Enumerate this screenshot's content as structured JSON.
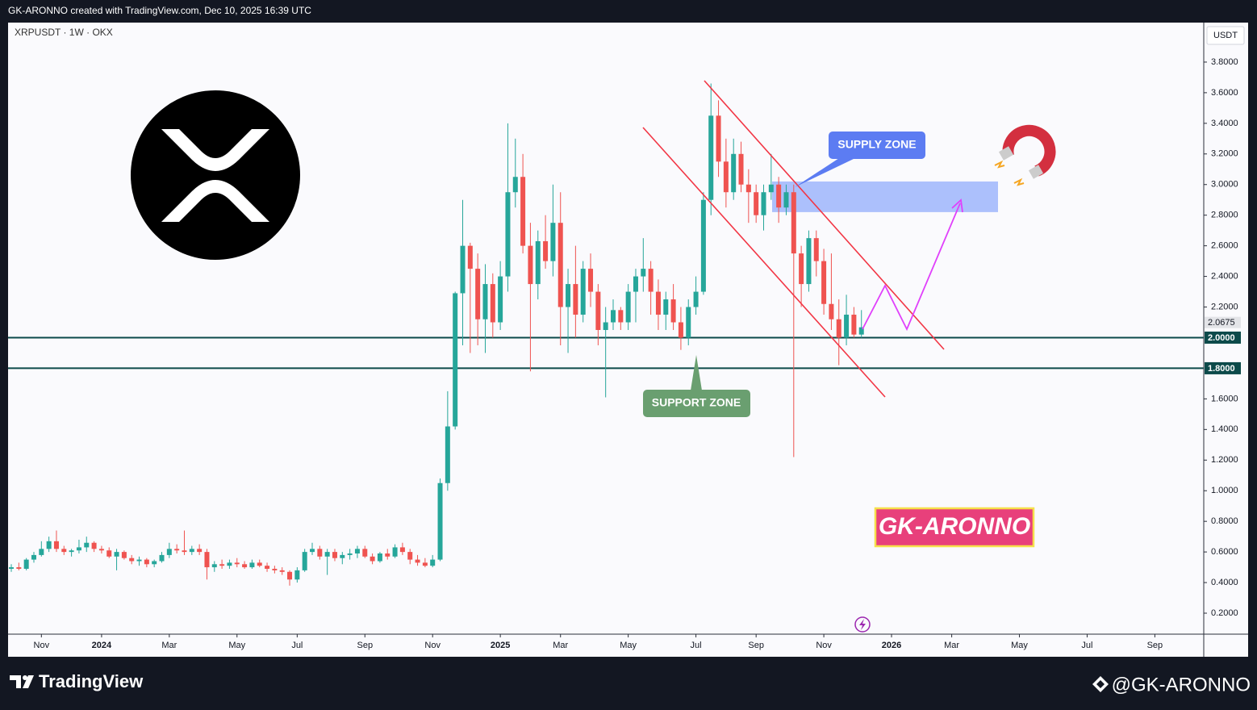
{
  "page_header": "GK-ARONNO created with TradingView.com, Dec 10, 2025 16:39 UTC",
  "footer": {
    "brand": "TradingView",
    "author": "@GK-ARONNO"
  },
  "chart_data": {
    "type": "candlestick",
    "title": "XRPUSDT · 1W · OKX",
    "currency": "USDT",
    "up_color": "#26a69a",
    "down_color": "#ef5350",
    "open": [
      0.49,
      0.5,
      0.49,
      0.55,
      0.58,
      0.62,
      0.67,
      0.62,
      0.6,
      0.61,
      0.63,
      0.66,
      0.62,
      0.61,
      0.57,
      0.6,
      0.56,
      0.54,
      0.55,
      0.52,
      0.54,
      0.58,
      0.62,
      0.61,
      0.6,
      0.62,
      0.6,
      0.5,
      0.52,
      0.51,
      0.53,
      0.52,
      0.5,
      0.53,
      0.51,
      0.49,
      0.48,
      0.47,
      0.42,
      0.48,
      0.6,
      0.62,
      0.57,
      0.6,
      0.56,
      0.58,
      0.59,
      0.62,
      0.57,
      0.54,
      0.59,
      0.57,
      0.63,
      0.6,
      0.55,
      0.53,
      0.51,
      0.55,
      1.05,
      1.42,
      2.29,
      2.6,
      2.45,
      2.12,
      2.35,
      2.1,
      2.4,
      2.95,
      3.05,
      2.6,
      2.35,
      2.63,
      2.5,
      2.75,
      2.2,
      2.35,
      2.15,
      2.45,
      2.3,
      2.05,
      2.1,
      2.18,
      2.1,
      2.3,
      2.4,
      2.45,
      2.3,
      2.15,
      2.25,
      2.1,
      2.0,
      2.2,
      2.3,
      2.9,
      3.45,
      3.15,
      2.95,
      3.2,
      3.0,
      2.95,
      2.8,
      2.95,
      3.0,
      2.85,
      2.95,
      2.55,
      2.35,
      2.65,
      2.5,
      2.22,
      2.12,
      2.0,
      2.15,
      2.02
    ],
    "high": [
      0.52,
      0.53,
      0.56,
      0.6,
      0.67,
      0.7,
      0.74,
      0.64,
      0.62,
      0.68,
      0.7,
      0.67,
      0.64,
      0.63,
      0.62,
      0.61,
      0.58,
      0.57,
      0.56,
      0.55,
      0.6,
      0.66,
      0.65,
      0.74,
      0.64,
      0.65,
      0.62,
      0.54,
      0.55,
      0.55,
      0.56,
      0.54,
      0.55,
      0.55,
      0.53,
      0.51,
      0.5,
      0.48,
      0.5,
      0.62,
      0.66,
      0.64,
      0.62,
      0.62,
      0.6,
      0.62,
      0.64,
      0.64,
      0.59,
      0.6,
      0.62,
      0.65,
      0.66,
      0.62,
      0.58,
      0.56,
      0.58,
      1.08,
      1.65,
      2.3,
      2.9,
      2.62,
      2.55,
      2.48,
      2.42,
      2.5,
      3.4,
      3.3,
      3.2,
      2.75,
      2.7,
      2.8,
      3.0,
      2.95,
      2.45,
      2.6,
      2.5,
      2.55,
      2.35,
      2.2,
      2.25,
      2.2,
      2.35,
      2.45,
      2.65,
      2.5,
      2.38,
      2.3,
      2.35,
      2.2,
      2.25,
      2.4,
      2.95,
      3.66,
      3.55,
      3.3,
      3.3,
      3.28,
      3.1,
      3.0,
      3.0,
      3.2,
      3.05,
      3.0,
      3.0,
      2.6,
      2.7,
      2.7,
      2.58,
      2.55,
      2.25,
      2.28,
      2.2,
      2.18
    ],
    "low": [
      0.47,
      0.48,
      0.48,
      0.53,
      0.57,
      0.6,
      0.6,
      0.58,
      0.57,
      0.59,
      0.6,
      0.6,
      0.59,
      0.56,
      0.48,
      0.55,
      0.52,
      0.51,
      0.5,
      0.5,
      0.53,
      0.56,
      0.59,
      0.58,
      0.58,
      0.58,
      0.42,
      0.47,
      0.49,
      0.49,
      0.5,
      0.49,
      0.49,
      0.5,
      0.47,
      0.46,
      0.45,
      0.38,
      0.4,
      0.47,
      0.58,
      0.55,
      0.45,
      0.54,
      0.52,
      0.55,
      0.56,
      0.56,
      0.52,
      0.53,
      0.55,
      0.56,
      0.58,
      0.52,
      0.51,
      0.5,
      0.5,
      0.54,
      1.0,
      1.4,
      1.95,
      1.9,
      1.95,
      1.9,
      2.0,
      2.05,
      2.3,
      2.85,
      2.55,
      1.78,
      2.25,
      2.45,
      2.4,
      1.95,
      1.9,
      2.0,
      2.1,
      2.2,
      1.95,
      1.61,
      2.05,
      2.05,
      2.05,
      2.1,
      2.3,
      2.15,
      2.05,
      2.05,
      2.05,
      1.92,
      1.95,
      2.15,
      2.28,
      2.8,
      3.05,
      2.85,
      2.9,
      2.95,
      2.75,
      2.75,
      2.7,
      2.9,
      2.75,
      2.8,
      1.22,
      2.2,
      2.3,
      2.4,
      2.15,
      2.05,
      1.82,
      1.95,
      2.0,
      2.0
    ],
    "close": [
      0.5,
      0.49,
      0.55,
      0.58,
      0.62,
      0.67,
      0.62,
      0.6,
      0.61,
      0.63,
      0.66,
      0.62,
      0.61,
      0.57,
      0.6,
      0.56,
      0.54,
      0.55,
      0.52,
      0.54,
      0.58,
      0.62,
      0.61,
      0.6,
      0.62,
      0.6,
      0.5,
      0.52,
      0.51,
      0.53,
      0.52,
      0.5,
      0.53,
      0.51,
      0.49,
      0.48,
      0.47,
      0.42,
      0.48,
      0.6,
      0.62,
      0.57,
      0.6,
      0.56,
      0.58,
      0.59,
      0.62,
      0.57,
      0.54,
      0.59,
      0.57,
      0.63,
      0.6,
      0.55,
      0.53,
      0.51,
      0.55,
      1.05,
      1.42,
      2.29,
      2.6,
      2.45,
      2.12,
      2.35,
      2.1,
      2.4,
      2.95,
      3.05,
      2.6,
      2.35,
      2.63,
      2.5,
      2.75,
      2.2,
      2.35,
      2.15,
      2.45,
      2.3,
      2.05,
      2.1,
      2.18,
      2.1,
      2.3,
      2.4,
      2.45,
      2.3,
      2.15,
      2.25,
      2.1,
      2.0,
      2.2,
      2.3,
      2.9,
      3.45,
      3.15,
      2.95,
      3.2,
      3.0,
      2.95,
      2.8,
      2.95,
      3.0,
      2.85,
      2.95,
      2.55,
      2.35,
      2.65,
      2.5,
      2.22,
      2.12,
      2.0,
      2.15,
      2.02,
      2.0675
    ],
    "xlim": [
      -0.43,
      158.5
    ],
    "xticks": [
      {
        "value": 4,
        "label": "Nov"
      },
      {
        "value": 12,
        "label": "2024"
      },
      {
        "value": 21,
        "label": "Mar"
      },
      {
        "value": 30,
        "label": "May"
      },
      {
        "value": 38,
        "label": "Jul"
      },
      {
        "value": 47,
        "label": "Sep"
      },
      {
        "value": 56,
        "label": "Nov"
      },
      {
        "value": 65,
        "label": "2025"
      },
      {
        "value": 73,
        "label": "Mar"
      },
      {
        "value": 82,
        "label": "May"
      },
      {
        "value": 91,
        "label": "Jul"
      },
      {
        "value": 99,
        "label": "Sep"
      },
      {
        "value": 108,
        "label": "Nov"
      },
      {
        "value": 117,
        "label": "2026"
      },
      {
        "value": 125,
        "label": "Mar"
      },
      {
        "value": 134,
        "label": "May"
      },
      {
        "value": 143,
        "label": "Jul"
      },
      {
        "value": 152,
        "label": "Sep"
      }
    ],
    "ylim": [
      0.063,
      4.058
    ],
    "yticks": [
      {
        "value": 0.2,
        "label": "0.2000"
      },
      {
        "value": 0.4,
        "label": "0.4000"
      },
      {
        "value": 0.6,
        "label": "0.6000"
      },
      {
        "value": 0.8,
        "label": "0.8000"
      },
      {
        "value": 1.0,
        "label": "1.0000"
      },
      {
        "value": 1.2,
        "label": "1.2000"
      },
      {
        "value": 1.4,
        "label": "1.4000"
      },
      {
        "value": 1.6,
        "label": "1.6000"
      },
      {
        "value": 2.2,
        "label": "2.2000"
      },
      {
        "value": 2.4,
        "label": "2.4000"
      },
      {
        "value": 2.6,
        "label": "2.6000"
      },
      {
        "value": 2.8,
        "label": "2.8000"
      },
      {
        "value": 3.0,
        "label": "3.0000"
      },
      {
        "value": 3.2,
        "label": "3.2000"
      },
      {
        "value": 3.4,
        "label": "3.4000"
      },
      {
        "value": 3.6,
        "label": "3.6000"
      },
      {
        "value": 3.8,
        "label": "3.8000"
      }
    ],
    "last_price": {
      "value": 2.0675,
      "label": "2.0675"
    },
    "levels": [
      {
        "value": 2.0,
        "label": "2.0000"
      },
      {
        "value": 1.8,
        "label": "1.8000"
      }
    ],
    "level_color": "#0c4a4a",
    "supply_zone": {
      "label": "SUPPLY ZONE",
      "range": [
        2.82,
        3.02
      ]
    },
    "support_zone_label": "SUPPORT ZONE",
    "watermark": "GK-ARONNO"
  }
}
